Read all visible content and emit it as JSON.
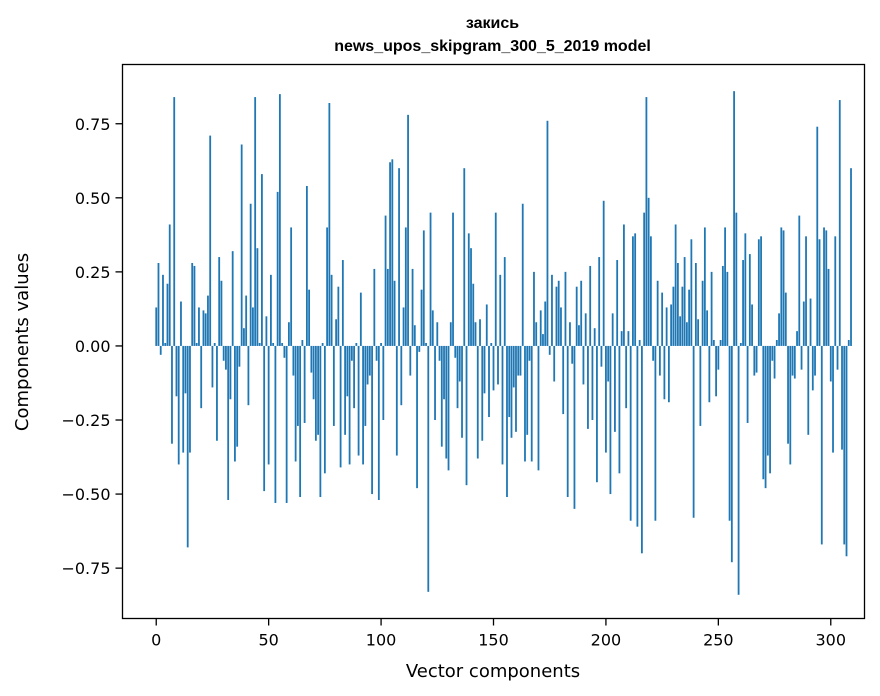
{
  "chart_data": {
    "type": "bar",
    "title": "закись",
    "subtitle": "news_upos_skipgram_300_5_2019 model",
    "xlabel": "Vector components",
    "ylabel": "Components values",
    "xlim": [
      -15,
      315
    ],
    "ylim": [
      -0.92,
      0.95
    ],
    "xticks": [
      0,
      50,
      100,
      150,
      200,
      250,
      300
    ],
    "xtick_labels": [
      "0",
      "50",
      "100",
      "150",
      "200",
      "250",
      "300"
    ],
    "yticks": [
      -0.75,
      -0.5,
      -0.25,
      0.0,
      0.25,
      0.5,
      0.75
    ],
    "ytick_labels": [
      "−0.75",
      "−0.50",
      "−0.25",
      "0.00",
      "0.25",
      "0.50",
      "0.75"
    ],
    "grid": false,
    "color": "#1f77b4",
    "values": [
      0.13,
      0.28,
      -0.03,
      0.24,
      0.01,
      0.21,
      0.41,
      -0.33,
      0.84,
      -0.17,
      -0.4,
      0.15,
      -0.36,
      -0.16,
      -0.68,
      -0.36,
      0.28,
      0.27,
      0.01,
      0.13,
      -0.21,
      0.12,
      0.11,
      0.17,
      0.71,
      -0.14,
      0.01,
      -0.32,
      0.3,
      0.22,
      -0.05,
      -0.08,
      -0.52,
      -0.18,
      0.32,
      -0.39,
      -0.34,
      -0.07,
      0.68,
      0.06,
      0.17,
      -0.2,
      0.48,
      0.13,
      0.84,
      0.33,
      0.01,
      0.58,
      -0.49,
      0.1,
      -0.4,
      0.24,
      0.01,
      -0.53,
      0.52,
      0.85,
      0.01,
      -0.04,
      -0.53,
      0.08,
      0.4,
      -0.1,
      -0.39,
      -0.27,
      -0.51,
      0.02,
      -0.26,
      0.54,
      0.19,
      -0.09,
      -0.18,
      -0.32,
      -0.3,
      -0.51,
      0.01,
      -0.43,
      0.4,
      0.82,
      0.24,
      -0.27,
      0.09,
      0.2,
      -0.41,
      0.29,
      -0.3,
      -0.17,
      -0.4,
      -0.05,
      -0.21,
      0.01,
      -0.37,
      0.18,
      -0.4,
      -0.27,
      -0.13,
      -0.1,
      -0.5,
      0.26,
      -0.05,
      -0.52,
      0.01,
      -0.25,
      0.44,
      0.26,
      0.62,
      0.63,
      0.22,
      -0.37,
      0.6,
      -0.2,
      0.13,
      0.4,
      0.78,
      -0.1,
      0.26,
      0.07,
      -0.48,
      -0.02,
      0.19,
      0.39,
      0.01,
      -0.83,
      0.45,
      0.12,
      -0.25,
      0.08,
      -0.05,
      -0.34,
      -0.18,
      -0.38,
      -0.42,
      0.08,
      0.45,
      -0.04,
      -0.21,
      -0.12,
      -0.31,
      0.6,
      -0.47,
      0.38,
      0.33,
      0.21,
      0.08,
      -0.38,
      0.09,
      -0.32,
      -0.16,
      0.14,
      -0.24,
      0.01,
      -0.15,
      0.45,
      -0.13,
      0.24,
      -0.4,
      0.3,
      -0.51,
      -0.24,
      -0.31,
      -0.14,
      -0.29,
      -0.1,
      -0.1,
      0.48,
      -0.39,
      -0.3,
      -0.05,
      -0.39,
      0.25,
      0.08,
      -0.42,
      0.12,
      0.04,
      0.15,
      0.76,
      -0.03,
      0.24,
      -0.12,
      0.2,
      0.22,
      0.13,
      -0.23,
      0.25,
      -0.51,
      0.08,
      -0.06,
      -0.55,
      0.2,
      0.07,
      0.22,
      -0.13,
      0.11,
      -0.28,
      0.27,
      -0.25,
      0.06,
      -0.46,
      0.3,
      -0.07,
      0.49,
      -0.36,
      -0.12,
      -0.5,
      0.11,
      -0.29,
      0.29,
      -0.43,
      0.05,
      0.41,
      -0.21,
      0.05,
      -0.59,
      0.37,
      0.38,
      -0.61,
      0.02,
      -0.7,
      0.45,
      0.84,
      0.5,
      0.37,
      -0.05,
      -0.59,
      0.22,
      -0.1,
      0.18,
      -0.18,
      0.13,
      -0.19,
      0.14,
      0.2,
      0.41,
      0.28,
      0.1,
      0.2,
      0.3,
      0.08,
      0.19,
      0.36,
      -0.58,
      0.28,
      0.09,
      -0.27,
      0.22,
      0.4,
      0.12,
      -0.19,
      0.25,
      0.02,
      -0.17,
      -0.08,
      0.02,
      0.27,
      0.4,
      0.25,
      -0.59,
      -0.73,
      0.86,
      0.45,
      -0.84,
      0.01,
      0.29,
      0.38,
      -0.26,
      0.31,
      0.14,
      -0.1,
      -0.09,
      0.36,
      0.37,
      -0.45,
      -0.48,
      -0.37,
      -0.43,
      -0.05,
      -0.11,
      0.02,
      0.11,
      0.4,
      0.39,
      0.18,
      -0.33,
      -0.4,
      -0.1,
      -0.11,
      0.05,
      0.44,
      -0.08,
      0.15,
      0.37,
      -0.3,
      0.16,
      -0.15,
      -0.1,
      0.74,
      0.36,
      -0.67,
      0.4,
      0.39,
      0.26,
      -0.12,
      -0.36,
      0.37,
      -0.08,
      0.83,
      -0.35,
      -0.67,
      -0.71,
      0.02,
      0.6
    ]
  }
}
